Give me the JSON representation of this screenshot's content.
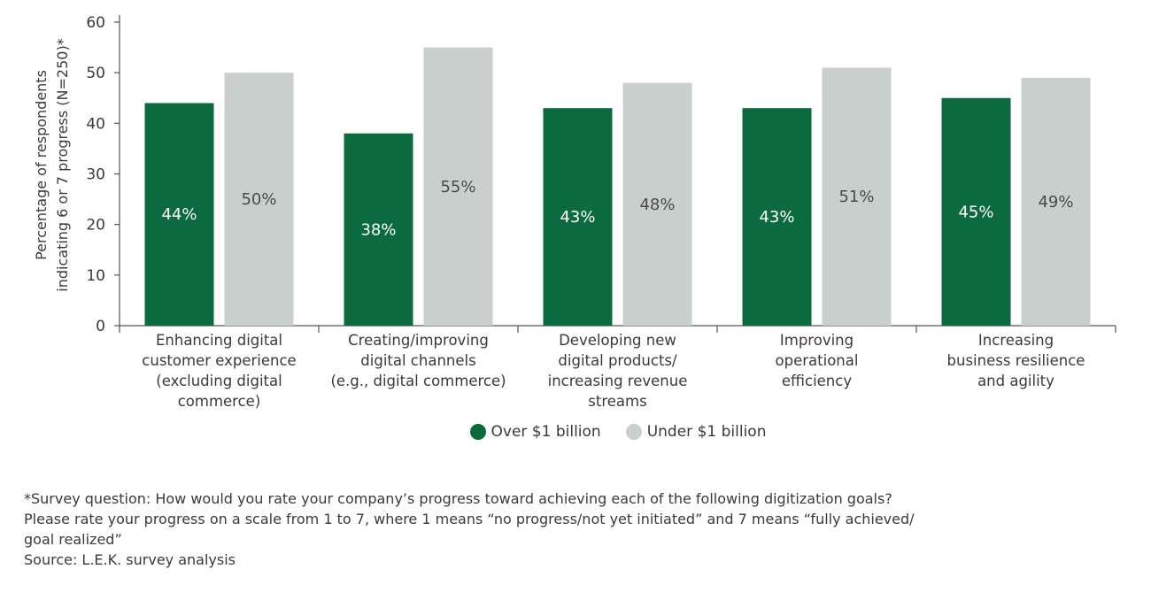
{
  "chart_data": {
    "type": "bar",
    "ylabel_lines": [
      "Percentage of respondents",
      "indicating 6 or 7 progress (N=250)*"
    ],
    "ylim": [
      0,
      60
    ],
    "yticks": [
      0,
      10,
      20,
      30,
      40,
      50,
      60
    ],
    "grid": false,
    "legend_position": "bottom-center",
    "categories": [
      [
        "Enhancing digital",
        "customer experience",
        "(excluding digital",
        "commerce)"
      ],
      [
        "Creating/improving",
        "digital channels",
        "(e.g., digital commerce)"
      ],
      [
        "Developing new",
        "digital products/",
        "increasing revenue",
        "streams"
      ],
      [
        "Improving",
        "operational",
        "efficiency"
      ],
      [
        "Increasing",
        "business resilience",
        "and agility"
      ]
    ],
    "series": [
      {
        "name": "Over $1 billion",
        "color": "#0b6b3e",
        "label_color": "#ffffff",
        "values": [
          44,
          38,
          43,
          43,
          45
        ],
        "labels": [
          "44%",
          "38%",
          "43%",
          "43%",
          "45%"
        ]
      },
      {
        "name": "Under $1 billion",
        "color": "#c8cfcc",
        "label_color": "#4a4a4a",
        "values": [
          50,
          55,
          48,
          51,
          49
        ],
        "labels": [
          "50%",
          "55%",
          "48%",
          "51%",
          "49%"
        ]
      }
    ]
  },
  "legend": {
    "items": [
      {
        "label": "Over $1 billion",
        "color": "#0b6b3e"
      },
      {
        "label": "Under $1 billion",
        "color": "#c8cfcc"
      }
    ]
  },
  "footnote": {
    "line1": "*Survey question: How would you rate your company’s progress toward achieving each of the following digitization goals?",
    "line2": "Please rate your progress on a scale from 1 to 7, where 1 means “no progress/not yet initiated” and 7 means “fully achieved/",
    "line3": "goal realized”",
    "source": "Source: L.E.K. survey analysis"
  }
}
